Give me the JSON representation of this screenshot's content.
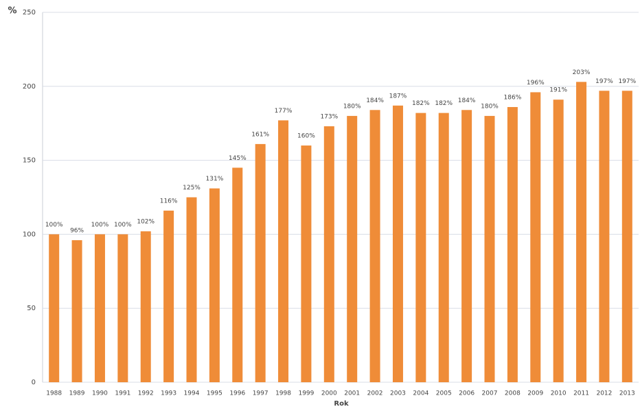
{
  "chart_data": {
    "type": "bar",
    "y_label": "%",
    "x_label": "Rok",
    "categories": [
      "1988",
      "1989",
      "1990",
      "1991",
      "1992",
      "1993",
      "1994",
      "1995",
      "1996",
      "1997",
      "1998",
      "1999",
      "2000",
      "2001",
      "2002",
      "2003",
      "2004",
      "2005",
      "2006",
      "2007",
      "2008",
      "2009",
      "2010",
      "2011",
      "2012",
      "2013"
    ],
    "values": [
      100,
      96,
      100,
      100,
      102,
      116,
      125,
      131,
      145,
      161,
      177,
      160,
      173,
      180,
      184,
      187,
      182,
      182,
      184,
      180,
      186,
      196,
      191,
      203,
      197,
      197
    ],
    "value_labels": [
      "100%",
      "96%",
      "100%",
      "100%",
      "102%",
      "116%",
      "125%",
      "131%",
      "145%",
      "161%",
      "177%",
      "160%",
      "173%",
      "180%",
      "184%",
      "187%",
      "182%",
      "182%",
      "184%",
      "180%",
      "186%",
      "196%",
      "191%",
      "203%",
      "197%",
      "197%"
    ],
    "color": "#ef8c38",
    "ylim": [
      0,
      250
    ],
    "yticks": [
      0,
      50,
      100,
      150,
      200,
      250
    ],
    "grid": true
  }
}
